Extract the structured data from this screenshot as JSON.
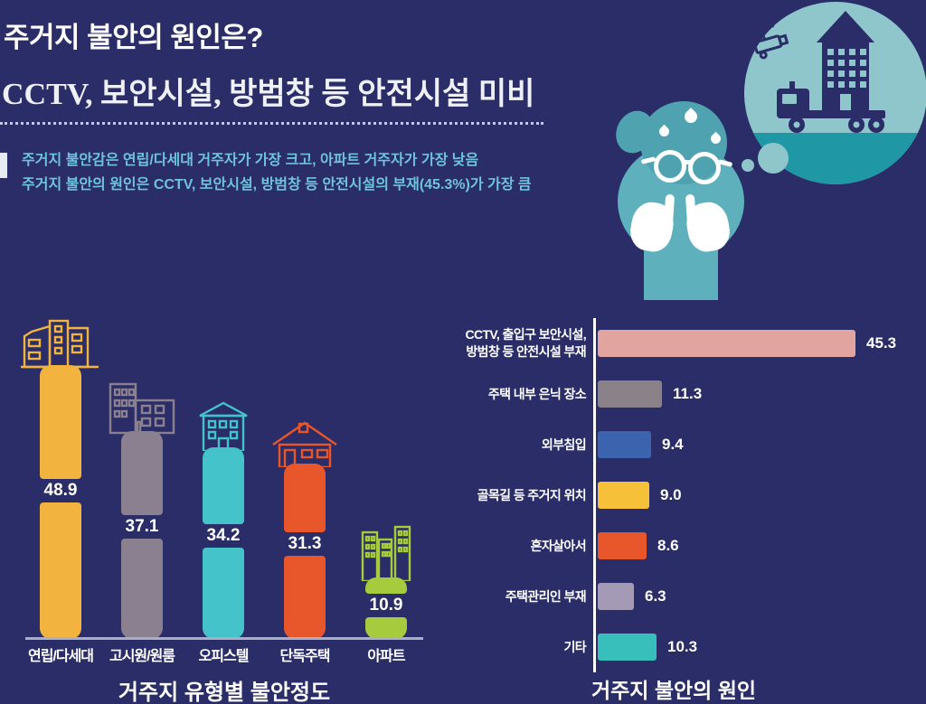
{
  "page": {
    "background": "#2a2d67"
  },
  "header": {
    "title": "주거지 불안의 원인은?",
    "subtitle": "CCTV, 보안시설, 방범창 등 안전시설 미비",
    "desc_lines": [
      "주거지 불안감은 연립/다세대 거주자가 가장 크고, 아파트 거주자가 가장 낮음",
      "주거지 불안의 원인은 CCTV, 보안시설, 방범창 등 안전시설의 부재(45.3%)가 가장 큼"
    ],
    "accent_bar_color": "#e8ecf2",
    "desc_color": "#6fc3de"
  },
  "illustration": {
    "person_icons": [
      "worried-person-icon",
      "glasses-icon",
      "sweat-drop-icon",
      "clasped-hands-icon"
    ],
    "bubble_icons": [
      "cctv-camera-icon",
      "apartment-building-icon",
      "moving-truck-icon"
    ],
    "person_body_color": "#5db0bc",
    "person_head_color": "#4fa3b1",
    "bubble_color": "#8ec6cc",
    "bubble_ground_color": "#1f97a5",
    "bubble_icon_color": "#2a2d67"
  },
  "chart_data": [
    {
      "type": "bar",
      "orientation": "vertical",
      "title": "거주지 유형별 불안정도",
      "unit": "%",
      "categories": [
        "연립/다세대",
        "고시원/원룸",
        "오피스텔",
        "단독주택",
        "아파트"
      ],
      "values": [
        48.9,
        37.1,
        34.2,
        31.3,
        10.9
      ],
      "value_labels": [
        "48.9",
        "37.1",
        "34.2",
        "31.3",
        "10.9"
      ],
      "colors": [
        "#f3b43f",
        "#8b8090",
        "#44c4ca",
        "#e7572b",
        "#a6cb3d"
      ],
      "icons": [
        "multiplex-building-icon",
        "studio-building-icon",
        "officetel-building-icon",
        "detached-house-icon",
        "apartment-towers-icon"
      ],
      "ylim": [
        0,
        50
      ],
      "grid": false,
      "value_label_position": "inside-gap",
      "baseline_color": "#a9afc2"
    },
    {
      "type": "bar",
      "orientation": "horizontal",
      "title": "거주지 불안의 원인",
      "unit": "%",
      "categories": [
        "CCTV, 출입구 보안시설,\n방범창 등 안전시설 부재",
        "주택 내부 은닉 장소",
        "외부침입",
        "골목길 등 주거지 위치",
        "혼자살아서",
        "주택관리인 부재",
        "기타"
      ],
      "values": [
        45.3,
        11.3,
        9.4,
        9.0,
        8.6,
        6.3,
        10.3
      ],
      "value_labels": [
        "45.3",
        "11.3",
        "9.4",
        "9.0",
        "8.6",
        "6.3",
        "10.3"
      ],
      "colors": [
        "#e2a49f",
        "#8a8189",
        "#3c64ae",
        "#f6c138",
        "#e7572b",
        "#a49ab5",
        "#38bfbc"
      ],
      "xlim": [
        0,
        50
      ],
      "grid": false,
      "value_label_position": "right-of-bar",
      "axis_color": "#ffffff"
    }
  ]
}
